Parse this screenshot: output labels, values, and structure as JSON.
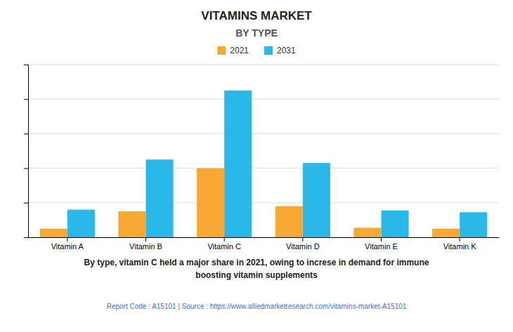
{
  "chart_data": {
    "type": "bar",
    "title": "VITAMINS MARKET",
    "subtitle": "BY TYPE",
    "categories": [
      "Vitamin A",
      "Vitamin B",
      "Vitamin C",
      "Vitamin D",
      "Vitamin E",
      "Vitamin K"
    ],
    "series": [
      {
        "name": "2021",
        "color": "#F5A933",
        "values": [
          0.5,
          1.5,
          4.0,
          1.8,
          0.55,
          0.5
        ]
      },
      {
        "name": "2031",
        "color": "#29B8E8",
        "values": [
          1.6,
          4.5,
          8.5,
          4.3,
          1.55,
          1.45
        ]
      }
    ],
    "ylim": [
      0,
      10
    ],
    "yticks": [
      0,
      2,
      4,
      6,
      8,
      10
    ],
    "grid": true,
    "tick_labels": "x",
    "legend": "top",
    "annotations": [
      "By type, vitamin C held a major share in 2021, owing to increse in demand for immune",
      "boosting vitamin supplements",
      "Report Code : A15101  |  Source : https://www.alliedmarketresearch.com/vitamins-market-A15101"
    ]
  }
}
